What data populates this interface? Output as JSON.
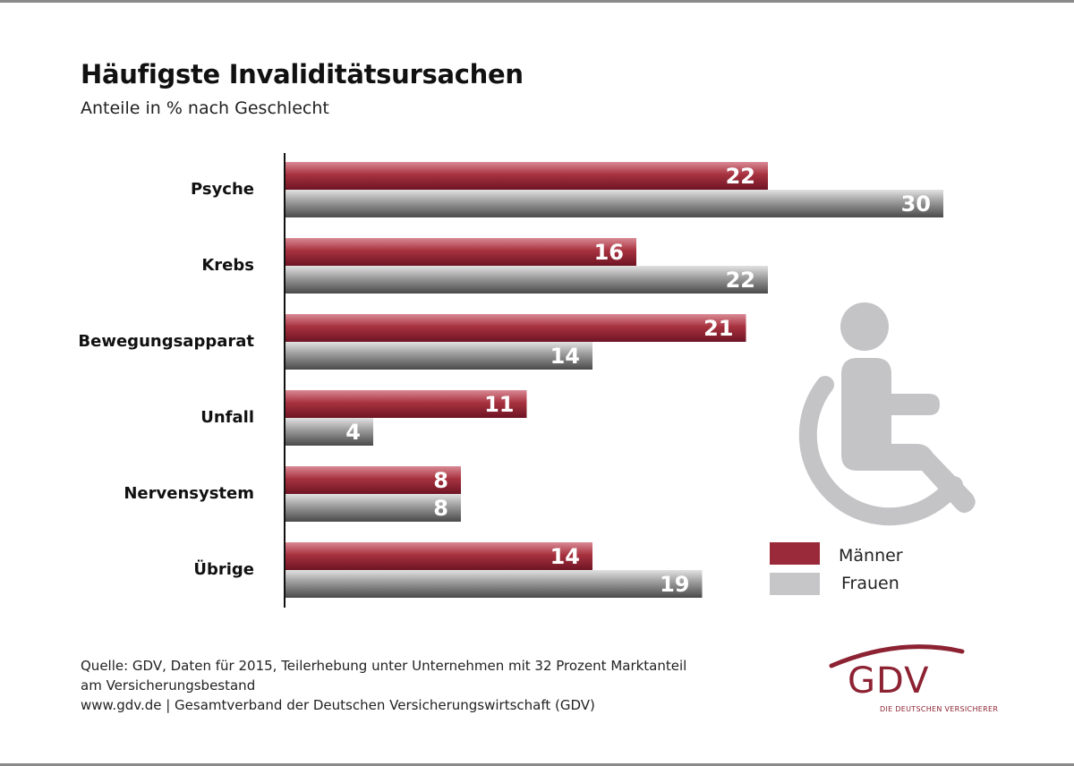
{
  "chart_data": {
    "type": "bar",
    "orientation": "horizontal",
    "title": "Häufigste Invaliditätsursachen",
    "subtitle": "Anteile in % nach Geschlecht",
    "categories": [
      "Psyche",
      "Krebs",
      "Bewegungsapparat",
      "Unfall",
      "Nervensystem",
      "Übrige"
    ],
    "series": [
      {
        "name": "Männer",
        "values": [
          22,
          16,
          21,
          11,
          8,
          14
        ],
        "color": "#9a2a3a"
      },
      {
        "name": "Frauen",
        "values": [
          30,
          22,
          14,
          4,
          8,
          19
        ],
        "color": "#8e8e8e"
      }
    ],
    "xlim": [
      0,
      30
    ],
    "grid": false,
    "legend": "bottom-right"
  },
  "colors": {
    "maenner": "#9a2a3a",
    "frauen": "#c6c6c8",
    "icon": "#c4c4c6",
    "brand": "#8c2232"
  },
  "footer": {
    "source_line1": "Quelle: GDV, Daten für 2015, Teilerhebung unter Unternehmen mit 32 Prozent Marktanteil",
    "source_line2": "am Versicherungsbestand",
    "publisher": "www.gdv.de | Gesamtverband der Deutschen Versicherungswirtschaft (GDV)"
  },
  "logo": {
    "text": "GDV",
    "tagline": "DIE DEUTSCHEN VERSICHERER"
  },
  "icons": {
    "main": "wheelchair-icon"
  }
}
